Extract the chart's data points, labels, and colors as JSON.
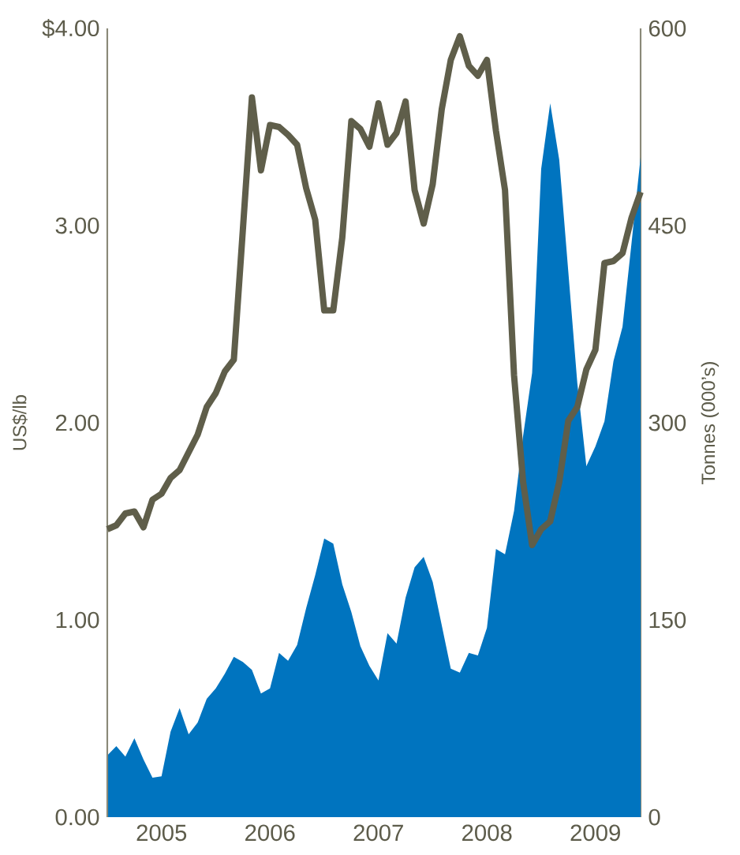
{
  "chart_data": {
    "type": "line",
    "ylabel": "US$/lb",
    "y2label": "Tonnes (000’s)",
    "x": [
      "2005-01",
      "2005-02",
      "2005-03",
      "2005-04",
      "2005-05",
      "2005-06",
      "2005-07",
      "2005-08",
      "2005-09",
      "2005-10",
      "2005-11",
      "2005-12",
      "2006-01",
      "2006-02",
      "2006-03",
      "2006-04",
      "2006-05",
      "2006-06",
      "2006-07",
      "2006-08",
      "2006-09",
      "2006-10",
      "2006-11",
      "2006-12",
      "2007-01",
      "2007-02",
      "2007-03",
      "2007-04",
      "2007-05",
      "2007-06",
      "2007-07",
      "2007-08",
      "2007-09",
      "2007-10",
      "2007-11",
      "2007-12",
      "2008-01",
      "2008-02",
      "2008-03",
      "2008-04",
      "2008-05",
      "2008-06",
      "2008-07",
      "2008-08",
      "2008-09",
      "2008-10",
      "2008-11",
      "2008-12",
      "2009-01",
      "2009-02",
      "2009-03",
      "2009-04",
      "2009-05",
      "2009-06",
      "2009-07",
      "2009-08",
      "2009-09",
      "2009-10",
      "2009-11",
      "2009-12"
    ],
    "series": [
      {
        "type": "area",
        "axis": "y2",
        "color": "#0074bf",
        "values": [
          47,
          54,
          46,
          60,
          44,
          30,
          31,
          65,
          83,
          63,
          72,
          90,
          98,
          109,
          122,
          118,
          112,
          94,
          98,
          125,
          119,
          131,
          159,
          184,
          212,
          208,
          177,
          156,
          130,
          115,
          104,
          140,
          132,
          167,
          190,
          198,
          179,
          146,
          113,
          110,
          125,
          123,
          144,
          204,
          200,
          233,
          290,
          338,
          493,
          543,
          500,
          415,
          330,
          267,
          282,
          301,
          347,
          373,
          437,
          502
        ]
      },
      {
        "axis": "y",
        "color": "#5f5e4a",
        "values": [
          1.46,
          1.48,
          1.54,
          1.55,
          1.47,
          1.61,
          1.64,
          1.72,
          1.76,
          1.85,
          1.94,
          2.08,
          2.15,
          2.26,
          2.32,
          2.98,
          3.65,
          3.28,
          3.51,
          3.5,
          3.46,
          3.41,
          3.19,
          3.03,
          2.57,
          2.57,
          2.94,
          3.53,
          3.49,
          3.4,
          3.62,
          3.41,
          3.47,
          3.63,
          3.18,
          3.01,
          3.21,
          3.59,
          3.84,
          3.96,
          3.81,
          3.76,
          3.84,
          3.48,
          3.18,
          2.24,
          1.7,
          1.38,
          1.46,
          1.5,
          1.7,
          2.01,
          2.08,
          2.27,
          2.37,
          2.81,
          2.82,
          2.86,
          3.04,
          3.17
        ]
      }
    ],
    "xlim": [
      "2005-01",
      "2009-12"
    ],
    "xticks": [
      {
        "value": "2005-07",
        "label": "2005"
      },
      {
        "value": "2006-07",
        "label": "2006"
      },
      {
        "value": "2007-07",
        "label": "2007"
      },
      {
        "value": "2008-07",
        "label": "2008"
      },
      {
        "value": "2009-07",
        "label": "2009"
      }
    ],
    "ylim": [
      0,
      4
    ],
    "yticks": [
      {
        "value": 0,
        "label": "0.00"
      },
      {
        "value": 1,
        "label": "1.00"
      },
      {
        "value": 2,
        "label": "2.00"
      },
      {
        "value": 3,
        "label": "3.00"
      },
      {
        "value": 4,
        "label": "$4.00"
      }
    ],
    "y2lim": [
      0,
      600
    ],
    "y2ticks": [
      0,
      150,
      300,
      450,
      600
    ]
  }
}
